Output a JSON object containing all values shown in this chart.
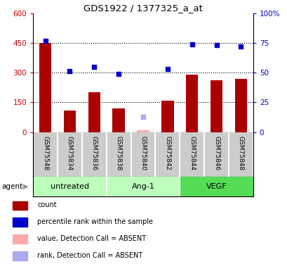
{
  "title": "GDS1922 / 1377325_a_at",
  "samples": [
    "GSM75548",
    "GSM75834",
    "GSM75836",
    "GSM75838",
    "GSM75840",
    "GSM75842",
    "GSM75844",
    "GSM75846",
    "GSM75848"
  ],
  "counts": [
    450,
    110,
    200,
    120,
    10,
    160,
    290,
    260,
    270
  ],
  "percentile_ranks": [
    77,
    51,
    55,
    49,
    13,
    53,
    74,
    73,
    72
  ],
  "absent_flags": [
    false,
    false,
    false,
    false,
    true,
    false,
    false,
    false,
    false
  ],
  "bar_color_present": "#aa0000",
  "bar_color_absent": "#ffaaaa",
  "sq_color_present": "#0000cc",
  "sq_color_absent": "#aaaaee",
  "ylim_left": [
    0,
    600
  ],
  "ylim_right": [
    0,
    100
  ],
  "yticks_left": [
    0,
    150,
    300,
    450,
    600
  ],
  "ytick_labels_left": [
    "0",
    "150",
    "300",
    "450",
    "600"
  ],
  "yticks_right": [
    0,
    25,
    50,
    75,
    "100%"
  ],
  "ytick_vals_right": [
    0,
    25,
    50,
    75,
    100
  ],
  "groups": [
    {
      "label": "untreated",
      "indices": [
        0,
        1,
        2
      ],
      "color": "#bbffbb"
    },
    {
      "label": "Ang-1",
      "indices": [
        3,
        4,
        5
      ],
      "color": "#bbffbb"
    },
    {
      "label": "VEGF",
      "indices": [
        6,
        7,
        8
      ],
      "color": "#55dd55"
    }
  ],
  "agent_label": "agent",
  "sample_bg_color": "#cccccc",
  "legend_items": [
    {
      "label": "count",
      "color": "#aa0000"
    },
    {
      "label": "percentile rank within the sample",
      "color": "#0000cc"
    },
    {
      "label": "value, Detection Call = ABSENT",
      "color": "#ffaaaa"
    },
    {
      "label": "rank, Detection Call = ABSENT",
      "color": "#aaaaee"
    }
  ]
}
